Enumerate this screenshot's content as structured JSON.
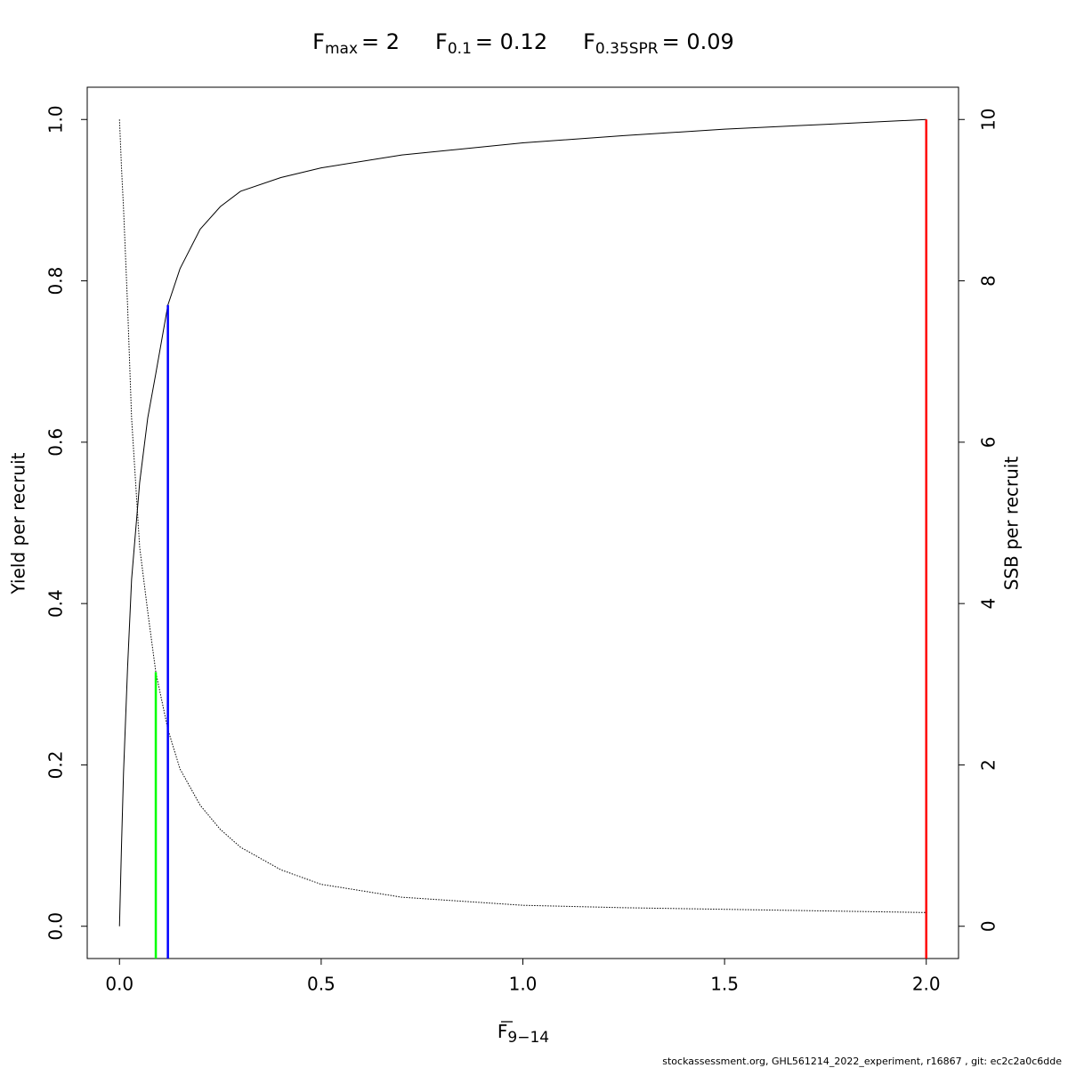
{
  "chart_data": {
    "type": "line",
    "title": [
      {
        "base": "F",
        "sub": "max",
        "rest": "= 2"
      },
      {
        "base": "F",
        "sub": "0.1",
        "rest": "= 0.12"
      },
      {
        "base": "F",
        "sub": "0.35SPR",
        "rest": "= 0.09"
      }
    ],
    "xlabel": {
      "base": "F",
      "sub": "9−14"
    },
    "ylabel": "Yield per recruit",
    "y2label": "SSB per recruit",
    "footnote": "stockassessment.org, GHL561214_2022_experiment, r16867 , git: ec2c2a0c6dde",
    "xlim": [
      -0.08,
      2.08
    ],
    "ylim": [
      -0.04,
      1.04
    ],
    "y2lim": [
      -0.4,
      10.4
    ],
    "xticks": [
      {
        "value": 0,
        "label": "0.0"
      },
      0.5,
      {
        "value": 1,
        "label": "1.0"
      },
      1.5,
      {
        "value": 2,
        "label": "2.0"
      }
    ],
    "yticks": [
      {
        "value": 0,
        "label": "0.0"
      },
      0.2,
      0.4,
      0.6,
      0.8,
      {
        "value": 1,
        "label": "1.0"
      }
    ],
    "y2ticks": [
      0,
      2,
      4,
      6,
      8,
      10
    ],
    "series": [
      {
        "color": "#000000",
        "dash": "solid",
        "x": [
          0,
          0.005,
          0.01,
          0.02,
          0.03,
          0.05,
          0.07,
          0.09,
          0.12,
          0.15,
          0.2,
          0.25,
          0.3,
          0.4,
          0.5,
          0.7,
          1.0,
          1.25,
          1.5,
          1.75,
          2.0
        ],
        "values": [
          0,
          0.1,
          0.19,
          0.32,
          0.43,
          0.55,
          0.63,
          0.685,
          0.77,
          0.815,
          0.864,
          0.892,
          0.911,
          0.928,
          0.94,
          0.956,
          0.971,
          0.98,
          0.988,
          0.994,
          1.0
        ]
      },
      {
        "color": "#000000",
        "dash": "dotted",
        "axis": "y2",
        "x": [
          0,
          0.005,
          0.01,
          0.02,
          0.03,
          0.05,
          0.07,
          0.09,
          0.12,
          0.15,
          0.2,
          0.25,
          0.3,
          0.4,
          0.5,
          0.7,
          1.0,
          1.25,
          1.5,
          1.75,
          2.0
        ],
        "values": [
          10,
          9.4,
          8.9,
          7.7,
          6.3,
          4.7,
          3.9,
          3.15,
          2.44,
          1.95,
          1.5,
          1.2,
          0.98,
          0.7,
          0.52,
          0.36,
          0.26,
          0.23,
          0.21,
          0.19,
          0.17
        ]
      }
    ],
    "reference_lines": [
      {
        "x": 0.09,
        "y": 3.15,
        "axis": "y2",
        "color": "#00ff00"
      },
      {
        "x": 0.12,
        "y": 0.77,
        "color": "#0000ff"
      },
      {
        "x": 2.0,
        "y": 1.0,
        "color": "#ff0000"
      }
    ]
  }
}
